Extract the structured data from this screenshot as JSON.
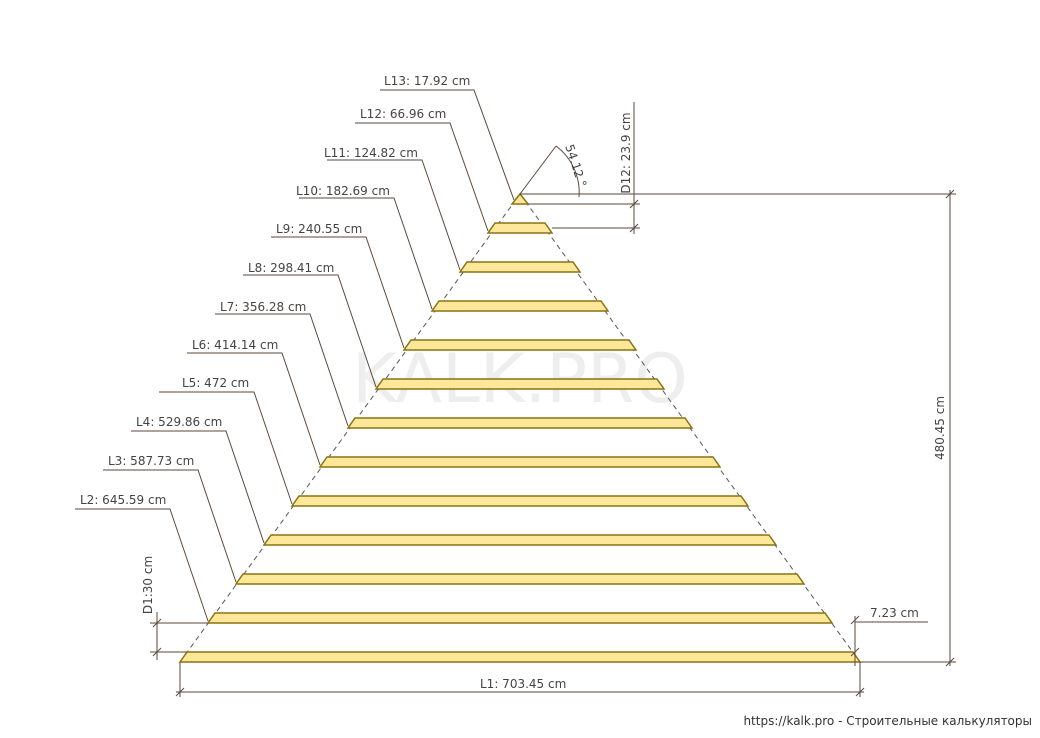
{
  "watermark": "KALK.PRO",
  "footer": "https://kalk.pro - Строительные калькуляторы",
  "boards": [
    {
      "label": "L1: 703.45 cm"
    },
    {
      "label": "L2: 645.59 cm"
    },
    {
      "label": "L3: 587.73 cm"
    },
    {
      "label": "L4: 529.86 cm"
    },
    {
      "label": "L5: 472 cm"
    },
    {
      "label": "L6: 414.14 cm"
    },
    {
      "label": "L7: 356.28 cm"
    },
    {
      "label": "L8: 298.41 cm"
    },
    {
      "label": "L9: 240.55 cm"
    },
    {
      "label": "L10: 182.69 cm"
    },
    {
      "label": "L11: 124.82 cm"
    },
    {
      "label": "L12: 66.96 cm"
    },
    {
      "label": "L13: 17.92 cm"
    }
  ],
  "dimensions": {
    "height": "480.45 cm",
    "board_thickness": "7.23 cm",
    "d1": "D1:30 cm",
    "d12": "D12: 23.9 cm",
    "angle": "54.12 °"
  },
  "colors": {
    "board_fill": "#fde89a",
    "board_stroke": "#8a7214",
    "line": "#5a4a3a",
    "dashed": "#555555",
    "watermark": "#eeeeee"
  }
}
